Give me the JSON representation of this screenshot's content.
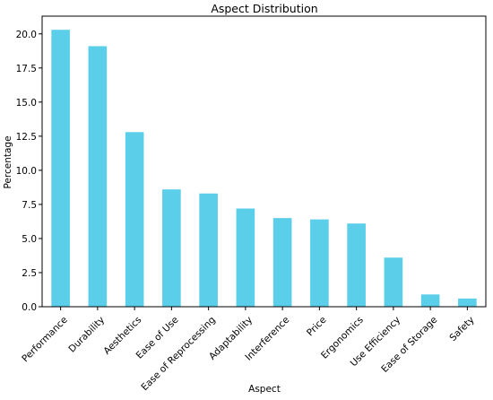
{
  "chart_data": {
    "type": "bar",
    "title": "Aspect Distribution",
    "xlabel": "Aspect",
    "ylabel": "Percentage",
    "categories": [
      "Performance",
      "Durability",
      "Aesthetics",
      "Ease of Use",
      "Ease of Reprocessing",
      "Adaptability",
      "Interference",
      "Price",
      "Ergonomics",
      "Use Efficiency",
      "Ease of Storage",
      "Safety"
    ],
    "values": [
      20.3,
      19.1,
      12.8,
      8.6,
      8.3,
      7.2,
      6.5,
      6.4,
      6.1,
      3.6,
      0.9,
      0.6
    ],
    "ylim": [
      0,
      21.3
    ],
    "yticks": [
      "0.0",
      "2.5",
      "5.0",
      "7.5",
      "10.0",
      "12.5",
      "15.0",
      "17.5",
      "20.0"
    ],
    "ytick_values": [
      0,
      2.5,
      5,
      7.5,
      10,
      12.5,
      15,
      17.5,
      20
    ],
    "bar_color": "#5bcfea",
    "grid": false,
    "legend": "none"
  }
}
